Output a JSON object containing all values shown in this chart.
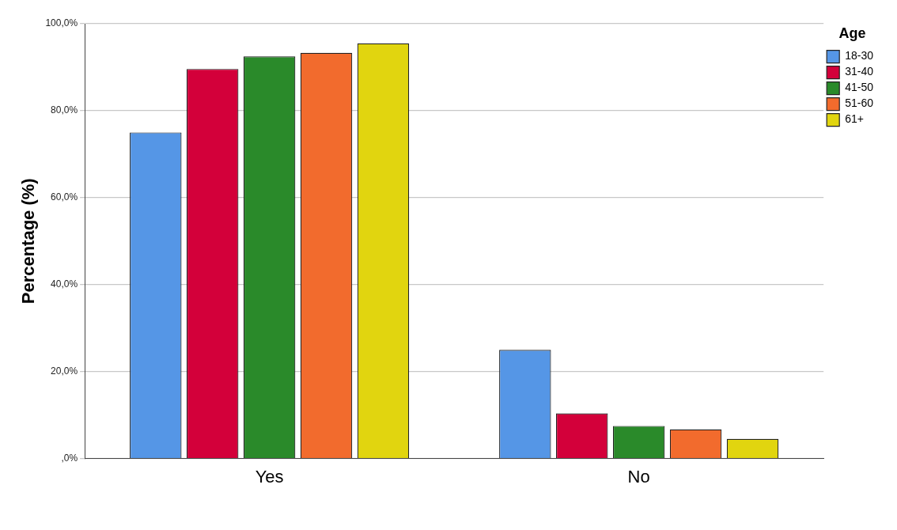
{
  "chart_data": {
    "type": "bar",
    "ylabel": "Percentage (%)",
    "legend_title": "Age",
    "categories": [
      "Yes",
      "No"
    ],
    "series": [
      {
        "name": "18-30",
        "color": "#5596e6",
        "values": [
          75.0,
          25.0
        ]
      },
      {
        "name": "31-40",
        "color": "#d3003a",
        "values": [
          89.6,
          10.4
        ]
      },
      {
        "name": "41-50",
        "color": "#2a8a2a",
        "values": [
          92.5,
          7.5
        ]
      },
      {
        "name": "51-60",
        "color": "#f26b2d",
        "values": [
          93.3,
          6.7
        ]
      },
      {
        "name": "61+",
        "color": "#e1d50f",
        "values": [
          95.5,
          4.5
        ]
      }
    ],
    "ylim": [
      0,
      100
    ],
    "yticks": [
      {
        "value": 0,
        "label": ",0%"
      },
      {
        "value": 20,
        "label": "20,0%"
      },
      {
        "value": 40,
        "label": "40,0%"
      },
      {
        "value": 60,
        "label": "60,0%"
      },
      {
        "value": 80,
        "label": "80,0%"
      },
      {
        "value": 100,
        "label": "100,0%"
      }
    ],
    "grid": "y",
    "legend": "top right"
  }
}
